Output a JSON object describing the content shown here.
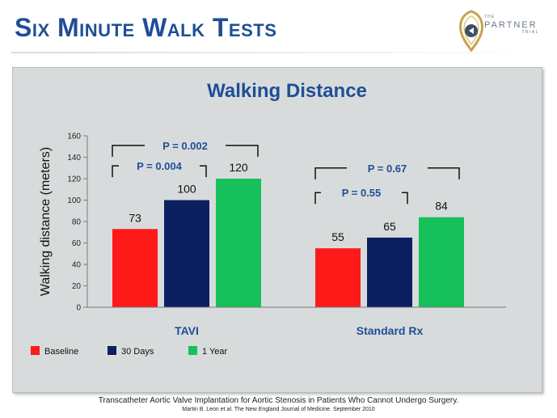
{
  "slide": {
    "title": "Six Minute Walk Tests",
    "footer_line1": "Transcatheter Aortic Valve Implantation for Aortic Stenosis in Patients Who Cannot Undergo Surgery.",
    "footer_line2": "Martin B. Leon et al. The New England Journal of Medicine. September 2010"
  },
  "logo": {
    "the": "THE",
    "name": "PARTNER",
    "trial": "TRIAL"
  },
  "colors": {
    "title": "#1f4e96",
    "baseline": "#ff1a1a",
    "days30": "#0a2060",
    "year1": "#16c05a",
    "bracket": "#111111",
    "pvalue": "#1f4e96"
  },
  "chart_data": {
    "type": "bar",
    "title": "Walking Distance",
    "ylabel": "Walking distance (meters)",
    "xlabel": "",
    "ylim": [
      0,
      160
    ],
    "yticks": [
      0,
      20,
      40,
      60,
      80,
      100,
      120,
      140,
      160
    ],
    "grid": false,
    "legend_position": "bottom-left",
    "categories": [
      "TAVI",
      "Standard Rx"
    ],
    "series": [
      {
        "name": "Baseline",
        "values": [
          73,
          55
        ]
      },
      {
        "name": "30 Days",
        "values": [
          100,
          65
        ]
      },
      {
        "name": "1 Year",
        "values": [
          120,
          84
        ]
      }
    ],
    "data_labels": [
      [
        "73",
        "55"
      ],
      [
        "100",
        "65"
      ],
      [
        "120",
        "84"
      ]
    ],
    "annotations": [
      {
        "group": "TAVI",
        "from": "Baseline",
        "to": "30 Days",
        "text": "P = 0.004"
      },
      {
        "group": "TAVI",
        "from": "Baseline",
        "to": "1 Year",
        "text": "P = 0.002"
      },
      {
        "group": "Standard Rx",
        "from": "Baseline",
        "to": "30 Days",
        "text": "P = 0.55"
      },
      {
        "group": "Standard Rx",
        "from": "Baseline",
        "to": "1 Year",
        "text": "P = 0.67"
      }
    ]
  }
}
